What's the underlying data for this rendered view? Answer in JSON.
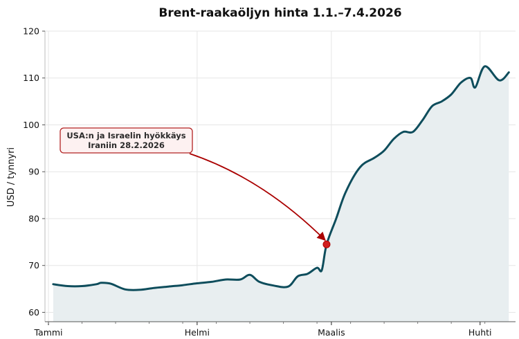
{
  "chart_data": {
    "type": "area",
    "title": "Brent-raakaöljyn hinta 1.1.–7.4.2026",
    "ylabel": "USD / tynnyri",
    "xlabel": "",
    "ylim": [
      58,
      120
    ],
    "yticks": [
      60,
      70,
      80,
      90,
      100,
      110,
      120
    ],
    "x_start": "2026-01-01",
    "x_end": "2026-04-07",
    "x_ticks": [
      {
        "date": "2026-01-01",
        "label": "Tammi"
      },
      {
        "date": "2026-02-01",
        "label": "Helmi"
      },
      {
        "date": "2026-03-01",
        "label": "Maalis"
      },
      {
        "date": "2026-04-01",
        "label": "Huhti"
      }
    ],
    "grid": true,
    "legend": "none",
    "series": [
      {
        "color": "#0e4d5c",
        "fill": "#e8eef0",
        "points": [
          [
            "2026-01-02",
            66.0
          ],
          [
            "2026-01-05",
            65.6
          ],
          [
            "2026-01-08",
            65.6
          ],
          [
            "2026-01_11",
            66.0
          ],
          [
            "2026-01-12",
            66.3
          ],
          [
            "2026-01-14",
            66.1
          ],
          [
            "2026-01-17",
            64.9
          ],
          [
            "2026-01-20",
            64.8
          ],
          [
            "2026-01-23",
            65.2
          ],
          [
            "2026-01-26",
            65.5
          ],
          [
            "2026-01-29",
            65.8
          ],
          [
            "2026-02-01",
            66.2
          ],
          [
            "2026-02-04",
            66.5
          ],
          [
            "2026-02-07",
            67.0
          ],
          [
            "2026-02-10",
            67.0
          ],
          [
            "2026-02-12",
            68.0
          ],
          [
            "2026-02-14",
            66.5
          ],
          [
            "2026-02-17",
            65.7
          ],
          [
            "2026-02-20",
            65.5
          ],
          [
            "2026-02-22",
            67.7
          ],
          [
            "2026-02-24",
            68.2
          ],
          [
            "2026-02-26",
            69.5
          ],
          [
            "2026-02-27",
            69.0
          ],
          [
            "2026-02-28",
            74.5
          ],
          [
            "2026-03-02",
            80.0
          ],
          [
            "2026-03-04",
            85.7
          ],
          [
            "2026-03-07",
            91.0
          ],
          [
            "2026-03-10",
            93.0
          ],
          [
            "2026-03-12",
            94.5
          ],
          [
            "2026-03-14",
            97.0
          ],
          [
            "2026-03-16",
            98.5
          ],
          [
            "2026-03-18",
            98.5
          ],
          [
            "2026-03-20",
            101.0
          ],
          [
            "2026-03-22",
            104.0
          ],
          [
            "2026-03-24",
            105.0
          ],
          [
            "2026-03-26",
            106.5
          ],
          [
            "2026-03-28",
            109.0
          ],
          [
            "2026-03-30",
            110.0
          ],
          [
            "2026-03-31",
            108.0
          ],
          [
            "2026-04-02",
            112.5
          ],
          [
            "2026-04-05",
            109.5
          ],
          [
            "2026-04-07",
            111.2
          ]
        ]
      }
    ],
    "annotation": {
      "text_line1": "USA:n ja Israelin hyökkäys",
      "text_line2": "Iraniin 28.2.2026",
      "point_date": "2026-02-28",
      "point_value": 74.5,
      "box_fill": "#fdf1f1",
      "box_stroke": "#b22222",
      "arrow_color": "#aa0000",
      "marker_color": "#d11f1f"
    }
  }
}
